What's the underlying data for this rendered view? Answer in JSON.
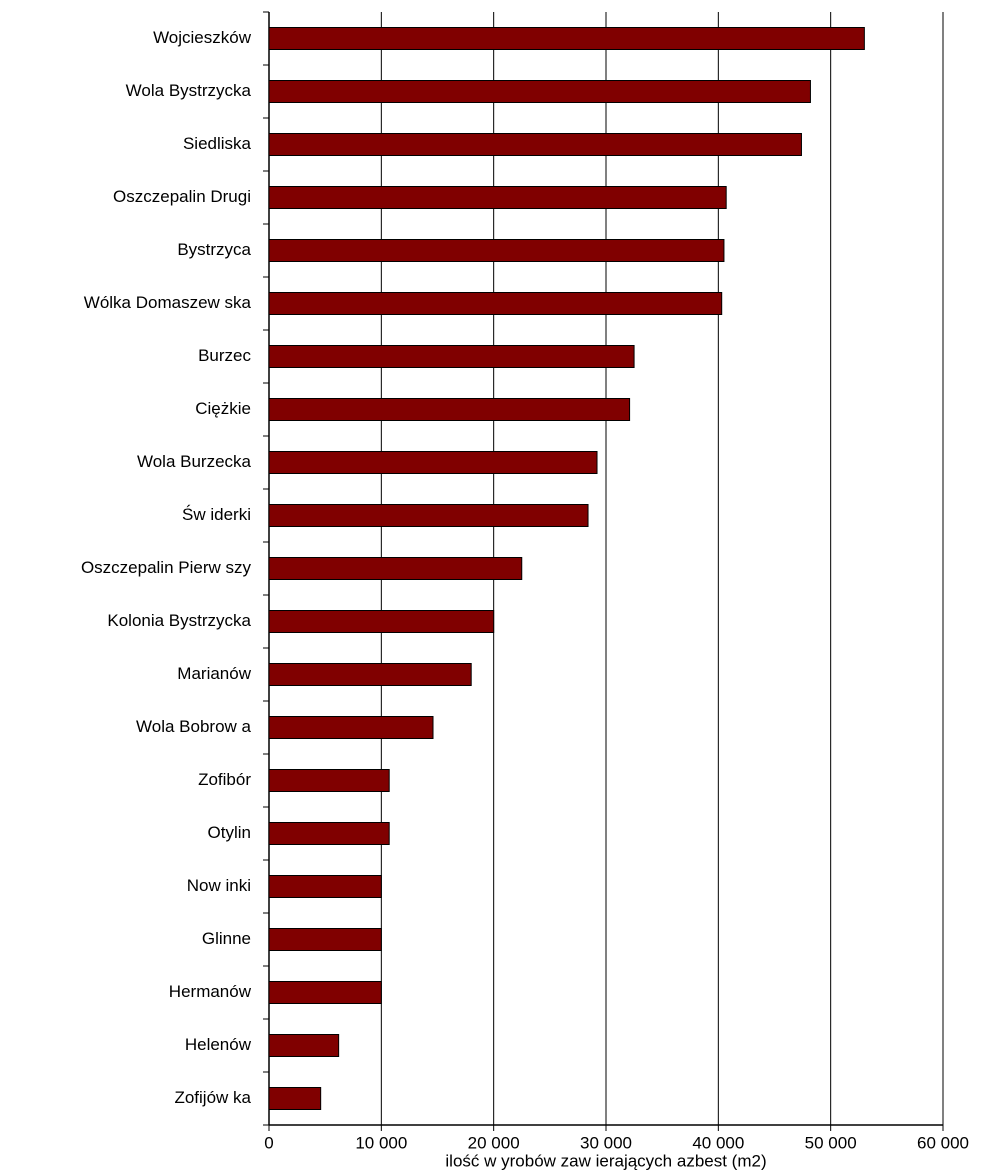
{
  "chart_data": {
    "type": "hbar",
    "x_label": "ilość w yrobów  zaw ierających azbest (m2)",
    "categories": [
      "Wojcieszków",
      "Wola Bystrzycka",
      "Siedliska",
      "Oszczepalin Drugi",
      "Bystrzyca",
      "Wólka Domaszew ska",
      "Burzec",
      "Ciężkie",
      "Wola Burzecka",
      "Św iderki",
      "Oszczepalin Pierw szy",
      "Kolonia Bystrzycka",
      "Marianów",
      "Wola Bobrow a",
      "Zofibór",
      "Otylin",
      "Now inki",
      "Glinne",
      "Hermanów",
      "Helenów",
      "Zofijów ka"
    ],
    "values": [
      53000,
      48200,
      47400,
      40700,
      40500,
      40300,
      32500,
      32100,
      29200,
      28400,
      22500,
      20000,
      18000,
      14600,
      10700,
      10700,
      10000,
      10000,
      10000,
      6200,
      4600
    ],
    "color": "#800000",
    "xlim": [
      0,
      60000
    ],
    "xticks": [
      0,
      {
        "value": 10000,
        "label": "10 000"
      },
      {
        "value": 20000,
        "label": "20 000"
      },
      {
        "value": 30000,
        "label": "30 000"
      },
      {
        "value": 40000,
        "label": "40 000"
      },
      {
        "value": 50000,
        "label": "50 000"
      },
      {
        "value": 60000,
        "label": "60 000"
      }
    ],
    "grid": true
  }
}
